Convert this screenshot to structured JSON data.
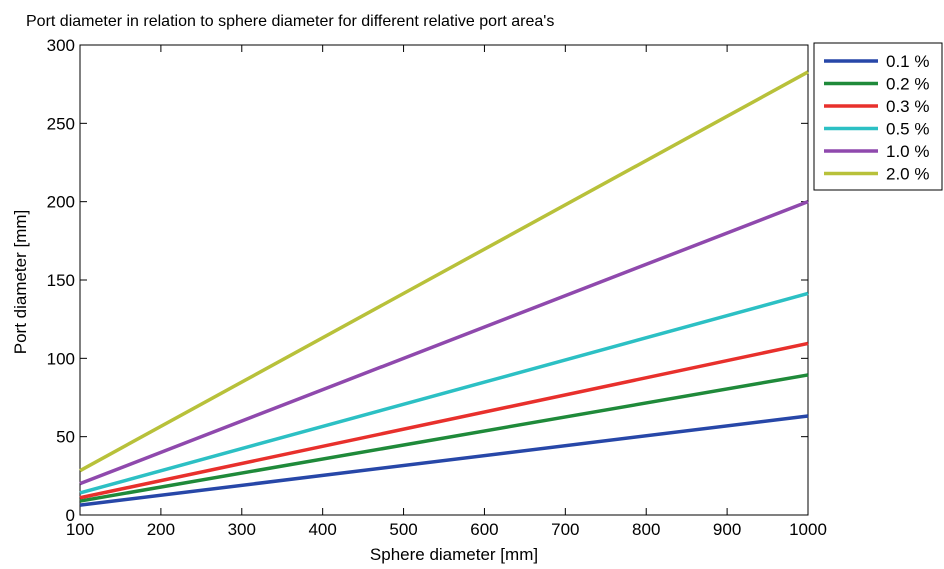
{
  "chart_data": {
    "type": "line",
    "title": "Port diameter in relation to sphere diameter for different relative port area's",
    "xlabel": "Sphere diameter [mm]",
    "ylabel": "Port diameter [mm]",
    "xlim": [
      100,
      1000
    ],
    "ylim": [
      0,
      300
    ],
    "xticks": [
      100,
      200,
      300,
      400,
      500,
      600,
      700,
      800,
      900,
      1000
    ],
    "yticks": [
      0,
      50,
      100,
      150,
      200,
      250,
      300
    ],
    "x": [
      100,
      1000
    ],
    "grid": false,
    "legend_position": "outside-top-right",
    "series": [
      {
        "name": "0.1 %",
        "color": "#2747a8",
        "values": [
          6.3,
          63.2
        ]
      },
      {
        "name": "0.2 %",
        "color": "#1f8a3a",
        "values": [
          8.9,
          89.4
        ]
      },
      {
        "name": "0.3 %",
        "color": "#e8302c",
        "values": [
          11,
          109.5
        ]
      },
      {
        "name": "0.5 %",
        "color": "#2cc0c4",
        "values": [
          14.1,
          141.4
        ]
      },
      {
        "name": "1.0 %",
        "color": "#8f49ad",
        "values": [
          20,
          200
        ]
      },
      {
        "name": "2.0 %",
        "color": "#b8c13a",
        "values": [
          28.3,
          282.8
        ]
      }
    ]
  }
}
